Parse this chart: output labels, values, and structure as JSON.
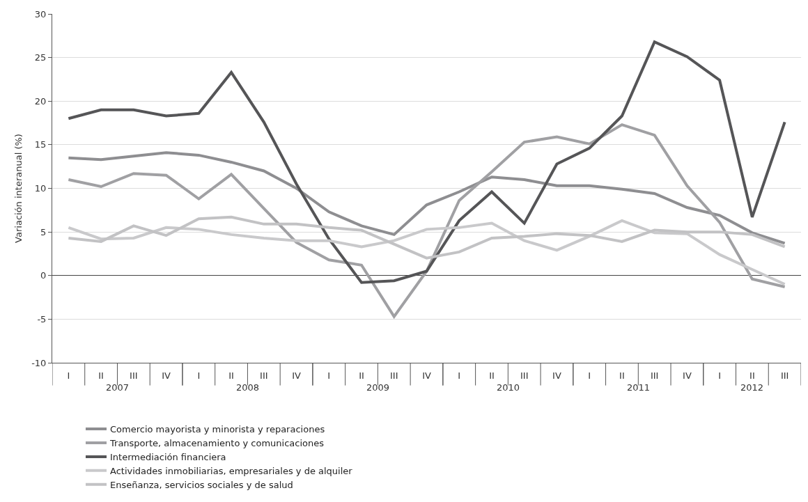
{
  "chart_data": {
    "type": "line",
    "ylabel": "Variación interanual (%)",
    "categories": [
      "I",
      "II",
      "III",
      "IV",
      "I",
      "II",
      "III",
      "IV",
      "I",
      "II",
      "III",
      "IV",
      "I",
      "II",
      "III",
      "IV",
      "I",
      "II",
      "III",
      "IV",
      "I",
      "II",
      "III"
    ],
    "annotations": [
      "2007",
      "2008",
      "2009",
      "2010",
      "2011",
      "2012"
    ],
    "series": [
      {
        "name": "Comercio mayorista y minorista y reparaciones",
        "color": "#8e8e91",
        "values": [
          13.5,
          13.3,
          13.7,
          14.1,
          13.8,
          13.0,
          12.0,
          10.0,
          7.3,
          5.7,
          4.7,
          8.1,
          9.6,
          11.3,
          11.0,
          10.3,
          10.3,
          9.9,
          9.4,
          7.8,
          6.9,
          4.9,
          3.7
        ]
      },
      {
        "name": "Transporte, almacenamiento y comunicaciones",
        "color": "#a0a0a3",
        "values": [
          11.0,
          10.2,
          11.7,
          11.5,
          8.8,
          11.6,
          7.7,
          3.8,
          1.8,
          1.2,
          -4.7,
          0.5,
          8.6,
          11.9,
          15.3,
          15.9,
          15.1,
          17.3,
          16.1,
          10.3,
          6.1,
          -0.4,
          -1.3
        ]
      },
      {
        "name": "Intermediación financiera",
        "color": "#555557",
        "values": [
          18.0,
          19.0,
          19.0,
          18.3,
          18.6,
          23.3,
          17.6,
          10.5,
          4.2,
          -0.8,
          -0.6,
          0.5,
          6.3,
          9.6,
          6.0,
          12.8,
          14.6,
          18.3,
          26.8,
          25.1,
          22.4,
          6.7,
          17.6
        ]
      },
      {
        "name": "Actividades inmobiliarias, empresariales y de alquiler",
        "color": "#c9c9cb",
        "values": [
          5.5,
          4.2,
          4.3,
          5.5,
          5.3,
          4.7,
          4.3,
          4.0,
          4.0,
          3.3,
          4.0,
          5.3,
          5.5,
          6.0,
          4.0,
          2.9,
          4.5,
          6.3,
          4.9,
          4.8,
          2.4,
          0.7,
          -1.0
        ]
      },
      {
        "name": "Enseñanza, servicios sociales y de salud",
        "color": "#c2c2c4",
        "values": [
          4.3,
          3.9,
          5.7,
          4.6,
          6.5,
          6.7,
          5.9,
          5.9,
          5.5,
          5.2,
          3.6,
          2.0,
          2.7,
          4.3,
          4.5,
          4.8,
          4.6,
          3.9,
          5.2,
          5.0,
          5.0,
          4.7,
          3.3
        ]
      }
    ],
    "ylim": [
      -10,
      30
    ],
    "yticks": [
      -10,
      -5,
      0,
      5,
      10,
      15,
      20,
      25,
      30
    ],
    "grid": "y",
    "legend": "bottom",
    "marker": "none",
    "line_style": "solid"
  }
}
